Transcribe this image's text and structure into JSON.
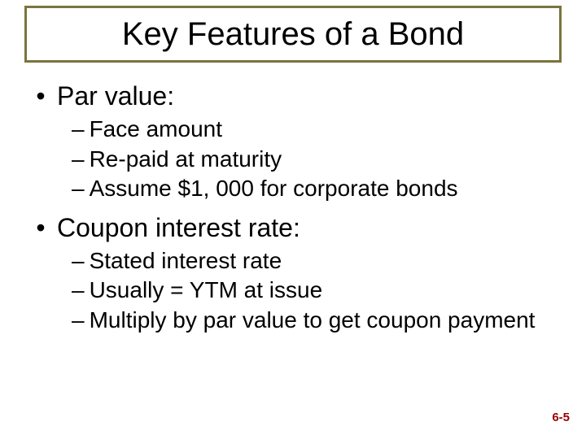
{
  "title": "Key Features of a Bond",
  "title_fontsize": 40,
  "title_border_color": "#7a743e",
  "bullets": [
    {
      "label": "Par value:",
      "subs": [
        "Face amount",
        "Re-paid at maturity",
        "Assume $1, 000 for corporate bonds"
      ]
    },
    {
      "label": "Coupon interest rate:",
      "subs": [
        "Stated interest rate",
        "Usually = YTM at issue",
        "Multiply by par value to get coupon payment"
      ]
    }
  ],
  "lvl1_fontsize": 32,
  "lvl2_fontsize": 28,
  "lvl1_marker": "•",
  "lvl2_marker": "–",
  "page_number": "6-5",
  "page_number_color": "#990000",
  "page_number_fontsize": 15,
  "background_color": "#ffffff",
  "text_color": "#000000"
}
